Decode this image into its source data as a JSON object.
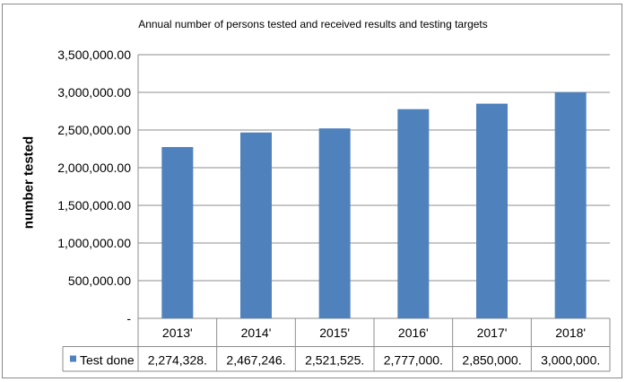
{
  "chart_data": {
    "type": "bar",
    "title": "Annual number of persons tested and received results and testing targets",
    "ylabel": "number tested",
    "xlabel": "",
    "categories": [
      "2013'",
      "2014'",
      "2015'",
      "2016'",
      "2017'",
      "2018'"
    ],
    "series": [
      {
        "name": "Test done",
        "values": [
          2274328,
          2467246,
          2521525,
          2777000,
          2850000,
          3000000
        ],
        "table_labels": [
          "2,274,328.",
          "2,467,246.",
          "2,521,525.",
          "2,777,000.",
          "2,850,000.",
          "3,000,000."
        ],
        "color": "#4f81bd"
      }
    ],
    "ylim": [
      0,
      3500000
    ],
    "yticks": [
      0,
      500000,
      1000000,
      1500000,
      2000000,
      2500000,
      3000000,
      3500000
    ],
    "ytick_labels": [
      "-",
      "500,000.00",
      "1,000,000.00",
      "1,500,000.00",
      "2,000,000.00",
      "2,500,000.00",
      "3,000,000.00",
      "3,500,000.00"
    ],
    "grid": true,
    "legend": "data-table"
  }
}
